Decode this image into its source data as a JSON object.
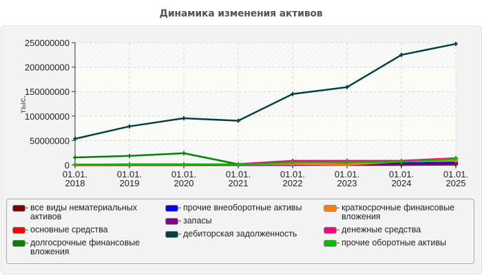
{
  "title": "Динамика изменения активов",
  "chart_data": {
    "type": "line",
    "title": "Динамика изменения активов",
    "xlabel": "",
    "ylabel": "тыс.",
    "ylim": [
      0,
      250000000
    ],
    "yticks": [
      "0",
      "50000000",
      "100000000",
      "150000000",
      "200000000",
      "250000000"
    ],
    "categories": [
      "01.01.\n2018",
      "01.01.\n2019",
      "01.01.\n2020",
      "01.01.\n2021",
      "01.01.\n2022",
      "01.01.\n2023",
      "01.01.\n2024",
      "01.01.\n2025"
    ],
    "grid": true,
    "legend_position": "bottom",
    "series": [
      {
        "name": "все виды нематериальных активов",
        "color": "#7a0000",
        "values": [
          0,
          0,
          0,
          0,
          0,
          0,
          0,
          500000
        ]
      },
      {
        "name": "основные средства",
        "color": "#ff0000",
        "values": [
          300000,
          300000,
          300000,
          500000,
          1000000,
          1500000,
          3000000,
          6000000
        ]
      },
      {
        "name": "долгосрочные финансовые вложения",
        "color": "#008000",
        "values": [
          15500000,
          18500000,
          24000000,
          1500000,
          500000,
          500000,
          500000,
          500000
        ]
      },
      {
        "name": "прочие внеоборотные активы",
        "color": "#0000ff",
        "values": [
          0,
          0,
          0,
          0,
          200000,
          500000,
          3500000,
          4000000
        ]
      },
      {
        "name": "запасы",
        "color": "#800080",
        "values": [
          0,
          0,
          0,
          500000,
          1000000,
          500000,
          1000000,
          1500000
        ]
      },
      {
        "name": "дебиторская задолженность",
        "color": "#004040",
        "values": [
          53500000,
          79000000,
          95500000,
          90500000,
          145000000,
          159000000,
          225000000,
          247500000
        ]
      },
      {
        "name": "краткосрочные финансовые вложения",
        "color": "#ff8000",
        "values": [
          500000,
          2000000,
          2000000,
          1000000,
          1500000,
          500000,
          7000000,
          9000000
        ]
      },
      {
        "name": "денежные средства",
        "color": "#ff0080",
        "values": [
          300000,
          500000,
          500000,
          2000000,
          8500000,
          8500000,
          8500000,
          14000000
        ]
      },
      {
        "name": "прочие оборотные активы",
        "color": "#00c000",
        "values": [
          1000000,
          1000000,
          1000000,
          1000000,
          5000000,
          5500000,
          6500000,
          12500000
        ]
      }
    ]
  },
  "legend": {
    "columns": [
      [
        0,
        1,
        2
      ],
      [
        3,
        4,
        5
      ],
      [
        6,
        7,
        8
      ]
    ]
  }
}
